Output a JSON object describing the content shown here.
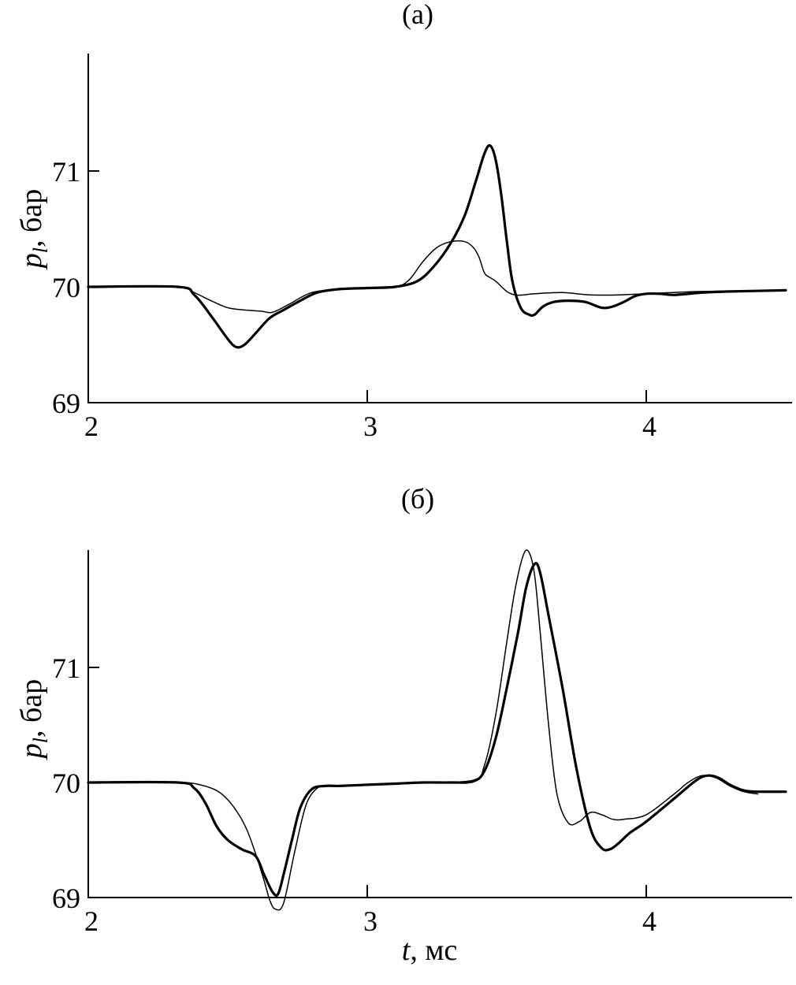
{
  "chart_data": [
    {
      "type": "line",
      "title": "(а)",
      "ylabel_main": "p",
      "ylabel_sub": "l",
      "ylabel_rest": ", бар",
      "xlabel_main": "",
      "xlabel_rest": "",
      "xlim": [
        2,
        4.5
      ],
      "ylim": [
        69,
        72
      ],
      "xticks": [
        2,
        3,
        4
      ],
      "yticks": [
        69,
        70,
        71
      ],
      "series": [
        {
          "style": "thick",
          "x": [
            2.0,
            2.32,
            2.38,
            2.44,
            2.5,
            2.53,
            2.56,
            2.6,
            2.65,
            2.7,
            2.76,
            2.82,
            2.9,
            3.0,
            3.1,
            3.18,
            3.24,
            3.3,
            3.35,
            3.39,
            3.42,
            3.44,
            3.46,
            3.48,
            3.5,
            3.52,
            3.55,
            3.58,
            3.6,
            3.63,
            3.67,
            3.72,
            3.78,
            3.84,
            3.88,
            3.92,
            3.96,
            4.0,
            4.05,
            4.1,
            4.2,
            4.3,
            4.5
          ],
          "y": [
            70.0,
            70.0,
            69.93,
            69.75,
            69.55,
            69.48,
            69.5,
            69.6,
            69.73,
            69.8,
            69.88,
            69.95,
            69.98,
            69.99,
            70.0,
            70.05,
            70.18,
            70.38,
            70.62,
            70.92,
            71.15,
            71.22,
            71.1,
            70.8,
            70.4,
            70.05,
            69.82,
            69.76,
            69.76,
            69.83,
            69.87,
            69.88,
            69.87,
            69.82,
            69.83,
            69.87,
            69.92,
            69.94,
            69.94,
            69.93,
            69.95,
            69.96,
            69.97
          ]
        },
        {
          "style": "thin",
          "x": [
            2.0,
            2.32,
            2.38,
            2.44,
            2.5,
            2.56,
            2.62,
            2.66,
            2.72,
            2.8,
            2.9,
            3.0,
            3.1,
            3.15,
            3.2,
            3.25,
            3.3,
            3.35,
            3.38,
            3.4,
            3.42,
            3.44,
            3.46,
            3.5,
            3.53,
            3.56,
            3.6,
            3.7,
            3.8,
            3.9,
            4.0,
            4.2,
            4.5
          ],
          "y": [
            70.0,
            70.0,
            69.95,
            69.88,
            69.82,
            69.8,
            69.79,
            69.78,
            69.85,
            69.95,
            69.98,
            69.99,
            70.0,
            70.06,
            70.22,
            70.34,
            70.39,
            70.39,
            70.34,
            70.26,
            70.12,
            70.08,
            70.05,
            69.96,
            69.93,
            69.93,
            69.94,
            69.95,
            69.93,
            69.93,
            69.94,
            69.96,
            69.97
          ]
        }
      ]
    },
    {
      "type": "line",
      "title": "(б)",
      "ylabel_main": "p",
      "ylabel_sub": "l",
      "ylabel_rest": ", бар",
      "xlabel_main": "t",
      "xlabel_rest": ", мс",
      "xlim": [
        2,
        4.5
      ],
      "ylim": [
        69,
        72
      ],
      "xticks": [
        2,
        3,
        4
      ],
      "yticks": [
        69,
        70,
        71
      ],
      "series": [
        {
          "style": "thick",
          "x": [
            2.0,
            2.32,
            2.38,
            2.42,
            2.46,
            2.5,
            2.55,
            2.6,
            2.63,
            2.66,
            2.68,
            2.7,
            2.73,
            2.76,
            2.8,
            2.85,
            2.9,
            3.0,
            3.1,
            3.2,
            3.3,
            3.38,
            3.42,
            3.46,
            3.5,
            3.54,
            3.57,
            3.6,
            3.62,
            3.65,
            3.7,
            3.75,
            3.8,
            3.84,
            3.87,
            3.9,
            3.94,
            4.0,
            4.1,
            4.18,
            4.22,
            4.26,
            4.3,
            4.35,
            4.4,
            4.5
          ],
          "y": [
            70.0,
            70.0,
            69.95,
            69.82,
            69.62,
            69.5,
            69.42,
            69.36,
            69.2,
            69.05,
            69.03,
            69.2,
            69.5,
            69.78,
            69.94,
            69.97,
            69.97,
            69.98,
            69.99,
            70.0,
            70.0,
            70.01,
            70.1,
            70.38,
            70.82,
            71.3,
            71.7,
            71.9,
            71.82,
            71.45,
            70.82,
            70.12,
            69.6,
            69.43,
            69.42,
            69.47,
            69.56,
            69.66,
            69.86,
            70.02,
            70.06,
            70.04,
            69.98,
            69.93,
            69.92,
            69.92
          ]
        },
        {
          "style": "thin",
          "x": [
            2.0,
            2.32,
            2.4,
            2.46,
            2.5,
            2.54,
            2.57,
            2.6,
            2.63,
            2.65,
            2.67,
            2.7,
            2.74,
            2.78,
            2.82,
            2.86,
            2.9,
            3.0,
            3.2,
            3.38,
            3.42,
            3.46,
            3.5,
            3.53,
            3.56,
            3.58,
            3.6,
            3.62,
            3.65,
            3.68,
            3.72,
            3.76,
            3.8,
            3.84,
            3.88,
            3.92,
            4.0,
            4.1,
            4.15,
            4.2,
            4.25,
            4.3,
            4.35,
            4.4
          ],
          "y": [
            70.0,
            70.0,
            69.98,
            69.93,
            69.85,
            69.72,
            69.58,
            69.38,
            69.15,
            68.98,
            68.9,
            68.95,
            69.4,
            69.8,
            69.95,
            69.97,
            69.97,
            69.98,
            70.0,
            70.02,
            70.15,
            70.58,
            71.22,
            71.68,
            71.98,
            72.0,
            71.8,
            71.3,
            70.5,
            69.9,
            69.65,
            69.66,
            69.74,
            69.72,
            69.68,
            69.68,
            69.72,
            69.9,
            70.0,
            70.06,
            70.04,
            69.97,
            69.92,
            69.9
          ]
        }
      ]
    }
  ]
}
